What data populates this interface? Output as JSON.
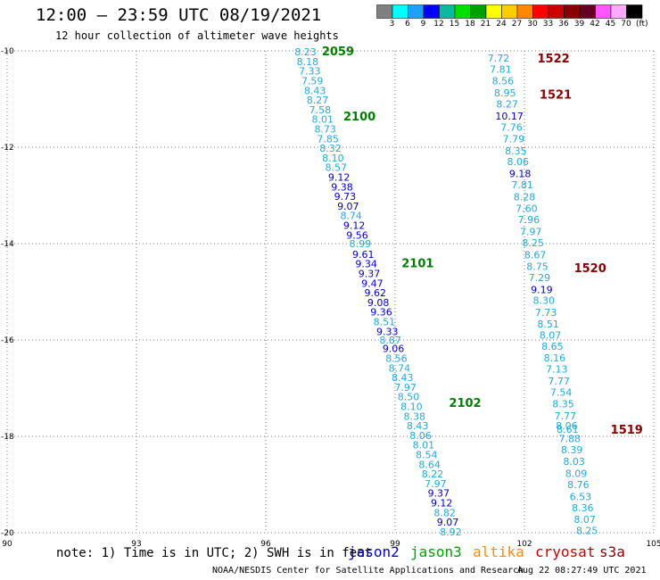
{
  "header": {
    "title": "12:00 — 23:59 UTC 08/19/2021",
    "subtitle": "12 hour collection of altimeter wave heights"
  },
  "legend": {
    "unit": "(ft)",
    "colors": [
      "#808080",
      "#00ffff",
      "#1ea0ff",
      "#0000ff",
      "#0bb8a0",
      "#00e000",
      "#00a000",
      "#ffff00",
      "#ffcc00",
      "#ff8800",
      "#ff0000",
      "#cc0000",
      "#880000",
      "#660022",
      "#ff55ff",
      "#ffaaff",
      "#000000"
    ],
    "labels": [
      "3",
      "6",
      "9",
      "12",
      "15",
      "18",
      "21",
      "24",
      "27",
      "30",
      "33",
      "36",
      "39",
      "42",
      "45",
      "70"
    ]
  },
  "footer": {
    "note": "note: 1) Time is in UTC; 2) SWH is in feet",
    "satellites": [
      {
        "name": "jason2",
        "color": "#0000cc"
      },
      {
        "name": "jason3",
        "color": "#00a000"
      },
      {
        "name": "altika",
        "color": "#ff8800"
      },
      {
        "name": "cryosat",
        "color": "#cc0000"
      },
      {
        "name": "s3a",
        "color": "#880000"
      }
    ],
    "credit": "NOAA/NESDIS Center for Satellite Applications and Research",
    "timestamp": "Aug 22 08:27:49 UTC 2021"
  },
  "chart_data": {
    "type": "scatter",
    "x_ticks": [
      "90",
      "93",
      "96",
      "99",
      "102",
      "105"
    ],
    "y_ticks": [
      "-10",
      "-12",
      "-14",
      "-16",
      "-18",
      "-20"
    ],
    "xlim": [
      90,
      105
    ],
    "ylim": [
      -20,
      -10
    ],
    "grid": true,
    "tracks": [
      {
        "name": "jason3",
        "time_labels": [
          {
            "text": "2059",
            "color": "#008000",
            "lon": 97.3,
            "lat": -10.0
          },
          {
            "text": "2100",
            "color": "#008000",
            "lon": 97.8,
            "lat": -11.35
          },
          {
            "text": "2101",
            "color": "#008000",
            "lon": 99.15,
            "lat": -14.4
          },
          {
            "text": "2102",
            "color": "#008000",
            "lon": 100.25,
            "lat": -17.3
          }
        ],
        "points": [
          {
            "lon": 96.92,
            "lat": -10.02,
            "v": "8.23",
            "c": "#22aadd"
          },
          {
            "lon": 96.97,
            "lat": -10.22,
            "v": "8.18",
            "c": "#22aadd"
          },
          {
            "lon": 97.02,
            "lat": -10.42,
            "v": "7.33",
            "c": "#22aadd"
          },
          {
            "lon": 97.08,
            "lat": -10.62,
            "v": "7.59",
            "c": "#22aadd"
          },
          {
            "lon": 97.14,
            "lat": -10.82,
            "v": "8.43",
            "c": "#22aadd"
          },
          {
            "lon": 97.2,
            "lat": -11.02,
            "v": "8.27",
            "c": "#22aadd"
          },
          {
            "lon": 97.26,
            "lat": -11.22,
            "v": "7.58",
            "c": "#22aadd"
          },
          {
            "lon": 97.32,
            "lat": -11.42,
            "v": "8.01",
            "c": "#22aadd"
          },
          {
            "lon": 97.38,
            "lat": -11.62,
            "v": "8.73",
            "c": "#22aadd"
          },
          {
            "lon": 97.44,
            "lat": -11.82,
            "v": "7.85",
            "c": "#22aadd"
          },
          {
            "lon": 97.5,
            "lat": -12.02,
            "v": "8.32",
            "c": "#22aadd"
          },
          {
            "lon": 97.56,
            "lat": -12.22,
            "v": "8.10",
            "c": "#22aadd"
          },
          {
            "lon": 97.63,
            "lat": -12.42,
            "v": "8.57",
            "c": "#22aadd"
          },
          {
            "lon": 97.7,
            "lat": -12.62,
            "v": "9.12",
            "c": "#0000cc"
          },
          {
            "lon": 97.77,
            "lat": -12.82,
            "v": "9.38",
            "c": "#0000cc"
          },
          {
            "lon": 97.84,
            "lat": -13.02,
            "v": "9.73",
            "c": "#0000cc"
          },
          {
            "lon": 97.91,
            "lat": -13.22,
            "v": "9.07",
            "c": "#0000cc"
          },
          {
            "lon": 97.98,
            "lat": -13.42,
            "v": "8.74",
            "c": "#22aadd"
          },
          {
            "lon": 98.05,
            "lat": -13.62,
            "v": "9.12",
            "c": "#0000cc"
          },
          {
            "lon": 98.12,
            "lat": -13.82,
            "v": "9.56",
            "c": "#0000cc"
          },
          {
            "lon": 98.19,
            "lat": -14.0,
            "v": "8.99",
            "c": "#22aadd"
          },
          {
            "lon": 98.26,
            "lat": -14.22,
            "v": "9.61",
            "c": "#0000cc"
          },
          {
            "lon": 98.33,
            "lat": -14.42,
            "v": "9.34",
            "c": "#0000cc"
          },
          {
            "lon": 98.4,
            "lat": -14.62,
            "v": "9.37",
            "c": "#0000cc"
          },
          {
            "lon": 98.47,
            "lat": -14.82,
            "v": "9.47",
            "c": "#0000cc"
          },
          {
            "lon": 98.54,
            "lat": -15.02,
            "v": "9.62",
            "c": "#0000cc"
          },
          {
            "lon": 98.61,
            "lat": -15.22,
            "v": "9.08",
            "c": "#0000cc"
          },
          {
            "lon": 98.68,
            "lat": -15.42,
            "v": "9.36",
            "c": "#0000cc"
          },
          {
            "lon": 98.75,
            "lat": -15.62,
            "v": "8.51",
            "c": "#22aadd"
          },
          {
            "lon": 98.82,
            "lat": -15.82,
            "v": "9.33",
            "c": "#0000cc"
          },
          {
            "lon": 98.89,
            "lat": -16.0,
            "v": "8.87",
            "c": "#22aadd"
          },
          {
            "lon": 98.96,
            "lat": -16.18,
            "v": "9.06",
            "c": "#0000cc"
          },
          {
            "lon": 99.03,
            "lat": -16.38,
            "v": "8.56",
            "c": "#22aadd"
          },
          {
            "lon": 99.1,
            "lat": -16.58,
            "v": "8.74",
            "c": "#22aadd"
          },
          {
            "lon": 99.17,
            "lat": -16.78,
            "v": "8.43",
            "c": "#22aadd"
          },
          {
            "lon": 99.24,
            "lat": -16.98,
            "v": "7.97",
            "c": "#22aadd"
          },
          {
            "lon": 99.31,
            "lat": -17.18,
            "v": "8.50",
            "c": "#22aadd"
          },
          {
            "lon": 99.38,
            "lat": -17.38,
            "v": "8.10",
            "c": "#22aadd"
          },
          {
            "lon": 99.45,
            "lat": -17.58,
            "v": "8.38",
            "c": "#22aadd"
          },
          {
            "lon": 99.52,
            "lat": -17.78,
            "v": "8.43",
            "c": "#22aadd"
          },
          {
            "lon": 99.59,
            "lat": -17.98,
            "v": "8.06",
            "c": "#22aadd"
          },
          {
            "lon": 99.66,
            "lat": -18.18,
            "v": "8.01",
            "c": "#22aadd"
          },
          {
            "lon": 99.73,
            "lat": -18.38,
            "v": "8.54",
            "c": "#22aadd"
          },
          {
            "lon": 99.8,
            "lat": -18.58,
            "v": "8.64",
            "c": "#22aadd"
          },
          {
            "lon": 99.87,
            "lat": -18.78,
            "v": "8.22",
            "c": "#22aadd"
          },
          {
            "lon": 99.94,
            "lat": -18.98,
            "v": "7.97",
            "c": "#22aadd"
          },
          {
            "lon": 100.01,
            "lat": -19.18,
            "v": "9.37",
            "c": "#0000cc"
          },
          {
            "lon": 100.08,
            "lat": -19.38,
            "v": "9.12",
            "c": "#0000cc"
          },
          {
            "lon": 100.15,
            "lat": -19.58,
            "v": "8.82",
            "c": "#22aadd"
          },
          {
            "lon": 100.22,
            "lat": -19.78,
            "v": "9.07",
            "c": "#0000cc"
          },
          {
            "lon": 100.29,
            "lat": -19.98,
            "v": "8.92",
            "c": "#22aadd"
          }
        ]
      },
      {
        "name": "s3a",
        "time_labels": [
          {
            "text": "1522",
            "color": "#880000",
            "lon": 102.3,
            "lat": -10.15
          },
          {
            "text": "1521",
            "color": "#880000",
            "lon": 102.35,
            "lat": -10.9
          },
          {
            "text": "1520",
            "color": "#880000",
            "lon": 103.15,
            "lat": -14.5
          },
          {
            "text": "1519",
            "color": "#880000",
            "lon": 104.0,
            "lat": -17.85
          }
        ],
        "points": [
          {
            "lon": 101.4,
            "lat": -10.15,
            "v": "7.72",
            "c": "#22aadd"
          },
          {
            "lon": 101.45,
            "lat": -10.38,
            "v": "7.81",
            "c": "#22aadd"
          },
          {
            "lon": 101.5,
            "lat": -10.62,
            "v": "8.56",
            "c": "#22aadd"
          },
          {
            "lon": 101.55,
            "lat": -10.87,
            "v": "8.95",
            "c": "#22aadd"
          },
          {
            "lon": 101.6,
            "lat": -11.1,
            "v": "8.27",
            "c": "#22aadd"
          },
          {
            "lon": 101.65,
            "lat": -11.35,
            "v": "10.17",
            "c": "#0000cc"
          },
          {
            "lon": 101.7,
            "lat": -11.58,
            "v": "7.76",
            "c": "#22aadd"
          },
          {
            "lon": 101.75,
            "lat": -11.82,
            "v": "7.79",
            "c": "#22aadd"
          },
          {
            "lon": 101.8,
            "lat": -12.07,
            "v": "8.35",
            "c": "#22aadd"
          },
          {
            "lon": 101.85,
            "lat": -12.3,
            "v": "8.06",
            "c": "#22aadd"
          },
          {
            "lon": 101.9,
            "lat": -12.55,
            "v": "9.18",
            "c": "#0000cc"
          },
          {
            "lon": 101.95,
            "lat": -12.78,
            "v": "7.81",
            "c": "#22aadd"
          },
          {
            "lon": 102.0,
            "lat": -13.03,
            "v": "8.28",
            "c": "#22aadd"
          },
          {
            "lon": 102.05,
            "lat": -13.27,
            "v": "7.60",
            "c": "#22aadd"
          },
          {
            "lon": 102.1,
            "lat": -13.5,
            "v": "7.96",
            "c": "#22aadd"
          },
          {
            "lon": 102.15,
            "lat": -13.75,
            "v": "7.97",
            "c": "#22aadd"
          },
          {
            "lon": 102.2,
            "lat": -13.98,
            "v": "8.25",
            "c": "#22aadd"
          },
          {
            "lon": 102.25,
            "lat": -14.23,
            "v": "8.67",
            "c": "#22aadd"
          },
          {
            "lon": 102.3,
            "lat": -14.47,
            "v": "8.75",
            "c": "#22aadd"
          },
          {
            "lon": 102.35,
            "lat": -14.7,
            "v": "7.29",
            "c": "#22aadd"
          },
          {
            "lon": 102.4,
            "lat": -14.95,
            "v": "9.19",
            "c": "#0000cc"
          },
          {
            "lon": 102.45,
            "lat": -15.18,
            "v": "8.30",
            "c": "#22aadd"
          },
          {
            "lon": 102.5,
            "lat": -15.43,
            "v": "7.73",
            "c": "#22aadd"
          },
          {
            "lon": 102.55,
            "lat": -15.67,
            "v": "8.51",
            "c": "#22aadd"
          },
          {
            "lon": 102.6,
            "lat": -15.9,
            "v": "8.07",
            "c": "#22aadd"
          },
          {
            "lon": 102.65,
            "lat": -16.13,
            "v": "8.65",
            "c": "#22aadd"
          },
          {
            "lon": 102.7,
            "lat": -16.37,
            "v": "8.16",
            "c": "#22aadd"
          },
          {
            "lon": 102.75,
            "lat": -16.6,
            "v": "7.13",
            "c": "#22aadd"
          },
          {
            "lon": 102.8,
            "lat": -16.85,
            "v": "7.77",
            "c": "#22aadd"
          },
          {
            "lon": 102.85,
            "lat": -17.08,
            "v": "7.54",
            "c": "#22aadd"
          },
          {
            "lon": 102.9,
            "lat": -17.32,
            "v": "8.35",
            "c": "#22aadd"
          },
          {
            "lon": 102.95,
            "lat": -17.57,
            "v": "7.77",
            "c": "#22aadd"
          },
          {
            "lon": 102.98,
            "lat": -17.78,
            "v": "8.06",
            "c": "#22aadd"
          },
          {
            "lon": 103.0,
            "lat": -17.85,
            "v": "8.61",
            "c": "#22aadd"
          },
          {
            "lon": 103.05,
            "lat": -18.05,
            "v": "7.88",
            "c": "#22aadd"
          },
          {
            "lon": 103.1,
            "lat": -18.28,
            "v": "8.39",
            "c": "#22aadd"
          },
          {
            "lon": 103.15,
            "lat": -18.52,
            "v": "8.03",
            "c": "#22aadd"
          },
          {
            "lon": 103.2,
            "lat": -18.77,
            "v": "8.09",
            "c": "#22aadd"
          },
          {
            "lon": 103.25,
            "lat": -19.0,
            "v": "8.76",
            "c": "#22aadd"
          },
          {
            "lon": 103.3,
            "lat": -19.25,
            "v": "6.53",
            "c": "#22aadd"
          },
          {
            "lon": 103.35,
            "lat": -19.48,
            "v": "8.36",
            "c": "#22aadd"
          },
          {
            "lon": 103.4,
            "lat": -19.72,
            "v": "8.07",
            "c": "#22aadd"
          },
          {
            "lon": 103.45,
            "lat": -19.95,
            "v": "8.25",
            "c": "#22aadd"
          }
        ]
      }
    ]
  }
}
